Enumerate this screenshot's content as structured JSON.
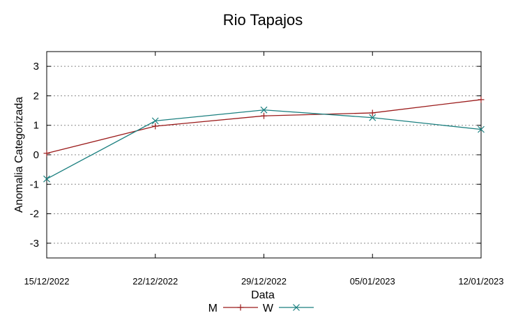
{
  "chart_data": {
    "type": "line",
    "title": "Rio Tapajos",
    "xlabel": "Data",
    "ylabel": "Anomalia Categorizada",
    "categories": [
      "15/12/2022",
      "22/12/2022",
      "29/12/2022",
      "05/01/2023",
      "12/01/2023"
    ],
    "y_ticks": [
      3,
      2,
      1,
      0,
      -1,
      -2,
      -3
    ],
    "ylim": [
      -3.5,
      3.5
    ],
    "grid": "horizontal-dashed",
    "legend_position": "bottom-center",
    "series": [
      {
        "name": "M",
        "color": "#9b1b1b",
        "marker": "plus",
        "values": [
          0.05,
          0.97,
          1.32,
          1.42,
          1.87
        ]
      },
      {
        "name": "W",
        "color": "#1a7f7f",
        "marker": "x",
        "values": [
          -0.82,
          1.15,
          1.52,
          1.26,
          0.86
        ]
      }
    ]
  }
}
